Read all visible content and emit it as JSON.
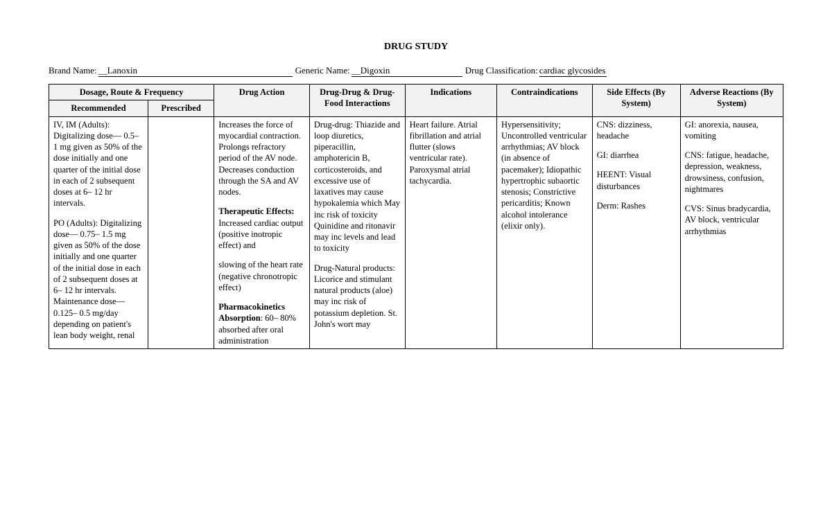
{
  "title": "DRUG STUDY",
  "info": {
    "brand_label": "Brand Name: ",
    "brand_value": "__Lanoxin",
    "generic_label": " Generic Name: ",
    "generic_value": "__Digoxin",
    "class_label": " Drug Classification: ",
    "class_value": "cardiac glycosides"
  },
  "headers": {
    "dosage_group": "Dosage, Route & Frequency",
    "recommended": "Recommended",
    "prescribed": "Prescribed",
    "action": "Drug Action",
    "interactions": "Drug-Drug & Drug-Food Interactions",
    "indications": "Indications",
    "contra": "Contraindications",
    "side": "Side Effects (By System)",
    "adverse": "Adverse Reactions (By System)"
  },
  "cells": {
    "recommended_1": "IV, IM (Adults): Digitalizing dose— 0.5– 1 mg given as 50% of the dose initially and one quarter of the initial dose in each of 2 subsequent doses at 6– 12 hr intervals.",
    "recommended_2": "PO (Adults): Digitalizing dose— 0.75– 1.5 mg given as 50% of the dose initially and one quarter of the initial dose in each of 2 subsequent doses at 6– 12 hr intervals. Maintenance dose—0.125– 0.5 mg/day depending on patient's lean body weight, renal",
    "prescribed": "",
    "action_1": "Increases the force of myocardial contraction. Prolongs refractory period of the AV node. Decreases conduction through the SA and AV nodes.",
    "action_2a": "Therapeutic Effects:",
    "action_2b": " Increased cardiac output (positive inotropic effect) and",
    "action_2c": "slowing of the heart rate (negative chronotropic effect)",
    "action_3a": "Pharmacokinetics Absorption",
    "action_3b": ": 60– 80% absorbed after oral administration",
    "inter_1": "Drug-drug: Thiazide and loop diuretics, piperacillin, amphotericin B, corticosteroids, and excessive use of laxatives may cause hypokalemia which May inc risk of toxicity",
    "inter_1b": "Quinidine and ritonavir may inc levels and lead to toxicity",
    "inter_2": "Drug-Natural products: Licorice and stimulant natural products (aloe) may inc risk of potassium depletion. St. John's wort may",
    "indications": "Heart failure. Atrial fibrillation and atrial flutter (slows ventricular rate). Paroxysmal atrial tachycardia.",
    "contra": "Hypersensitivity; Uncontrolled ventricular arrhythmias; AV block (in absence of pacemaker); Idiopathic hypertrophic subaortic stenosis; Constrictive pericarditis; Known alcohol intolerance (elixir only).",
    "side_1": "CNS: dizziness, headache",
    "side_2": "GI: diarrhea",
    "side_3": "HEENT: Visual disturbances",
    "side_4": "Derm: Rashes",
    "adverse_1": "GI: anorexia, nausea, vomiting",
    "adverse_2": "CNS: fatigue, headache, depression, weakness, drowsiness, confusion, nightmares",
    "adverse_3": "CVS: Sinus bradycardia, AV block, ventricular arrhythmias"
  }
}
